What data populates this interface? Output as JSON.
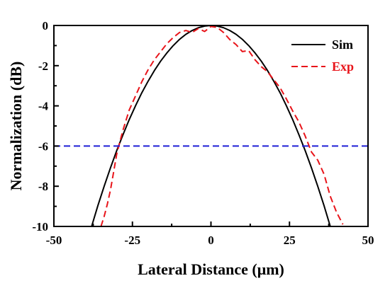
{
  "chart_data": {
    "type": "line",
    "xlabel": "Lateral Distance (μm)",
    "ylabel": "Normalization (dB)",
    "xlim": [
      -50,
      50
    ],
    "ylim": [
      -10,
      0
    ],
    "xticks": [
      "-50",
      "-25",
      "0",
      "25",
      "50"
    ],
    "yticks": [
      "0",
      "-2",
      "-4",
      "-6",
      "-8",
      "-10"
    ],
    "xtick_values": [
      -50,
      -25,
      0,
      25,
      50
    ],
    "ytick_values": [
      0,
      -2,
      -4,
      -6,
      -8,
      -10
    ],
    "grid": false,
    "legend_position": "top-right",
    "series": [
      {
        "name": "Sim",
        "color": "#000000",
        "style": "solid",
        "x": [
          -38,
          -36,
          -34,
          -32,
          -30,
          -28,
          -26,
          -24,
          -22,
          -20,
          -18,
          -16,
          -14,
          -12,
          -10,
          -8,
          -6,
          -4,
          -2,
          0,
          2,
          4,
          6,
          8,
          10,
          12,
          14,
          16,
          18,
          20,
          22,
          24,
          26,
          28,
          30,
          32,
          34,
          36,
          38
        ],
        "y": [
          -10.0,
          -8.97,
          -8.0,
          -7.09,
          -6.23,
          -5.43,
          -4.68,
          -3.99,
          -3.35,
          -2.77,
          -2.24,
          -1.77,
          -1.36,
          -1.0,
          -0.69,
          -0.44,
          -0.25,
          -0.11,
          -0.03,
          0.0,
          -0.03,
          -0.11,
          -0.25,
          -0.44,
          -0.69,
          -1.0,
          -1.36,
          -1.77,
          -2.24,
          -2.77,
          -3.35,
          -3.99,
          -4.68,
          -5.43,
          -6.23,
          -7.09,
          -8.0,
          -8.97,
          -10.0
        ]
      },
      {
        "name": "Exp",
        "color": "#e8141a",
        "style": "dashed",
        "x": [
          -35,
          -34,
          -33,
          -32,
          -31,
          -30,
          -29,
          -28,
          -27,
          -26,
          -24,
          -22,
          -20,
          -18,
          -16,
          -14,
          -12,
          -10,
          -8,
          -6,
          -4,
          -2,
          0,
          2,
          4,
          6,
          8,
          10,
          12,
          14,
          16,
          18,
          20,
          22,
          24,
          26,
          28,
          30,
          32,
          34,
          36,
          38,
          40,
          42
        ],
        "y": [
          -10.0,
          -9.5,
          -8.9,
          -8.2,
          -7.3,
          -6.4,
          -5.8,
          -5.2,
          -4.7,
          -4.2,
          -3.5,
          -2.8,
          -2.2,
          -1.7,
          -1.3,
          -0.9,
          -0.6,
          -0.35,
          -0.25,
          -0.35,
          -0.15,
          -0.3,
          -0.05,
          -0.1,
          -0.35,
          -0.7,
          -0.95,
          -1.3,
          -1.25,
          -1.7,
          -2.05,
          -2.3,
          -2.7,
          -3.1,
          -3.65,
          -4.25,
          -4.8,
          -5.5,
          -6.3,
          -6.7,
          -7.4,
          -8.5,
          -9.3,
          -9.9
        ]
      },
      {
        "name": "",
        "color": "#1f1fd6",
        "style": "dashed",
        "x": [
          -50,
          50
        ],
        "y": [
          -6,
          -6
        ]
      }
    ]
  }
}
